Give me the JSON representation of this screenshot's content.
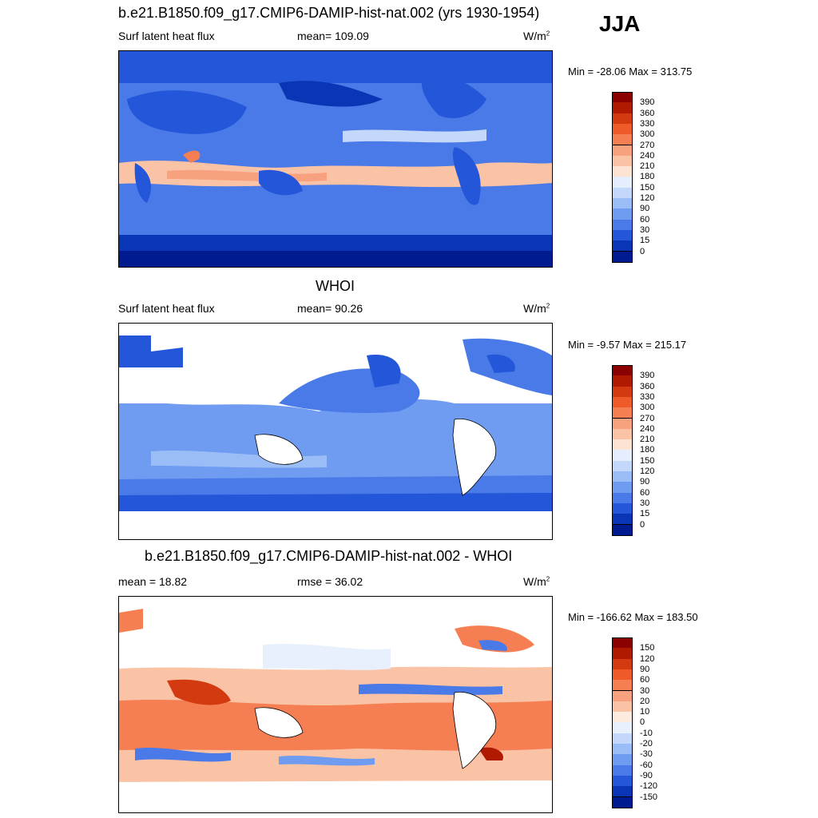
{
  "season": "JJA",
  "panels": [
    {
      "title": "b.e21.B1850.f09_g17.CMIP6-DAMIP-hist-nat.002 (yrs 1930-1954)",
      "variable": "Surf latent heat flux",
      "stat": "mean= 109.09",
      "units": "W/m",
      "units_sup": "2",
      "minmax": "Min = -28.06 Max = 313.75",
      "colorbar": {
        "labels": [
          "390",
          "360",
          "330",
          "300",
          "270",
          "240",
          "210",
          "180",
          "150",
          "120",
          "90",
          "60",
          "30",
          "15",
          "0"
        ],
        "colors": [
          "#8b0000",
          "#b01a00",
          "#d43a10",
          "#ee5a28",
          "#f57f52",
          "#f8a17e",
          "#fbc3a5",
          "#fde3d2",
          "#e4eefd",
          "#c4d8fb",
          "#9bbdf7",
          "#6f9bf0",
          "#4a79e8",
          "#2356d8",
          "#0a35b5",
          "#001a90"
        ]
      }
    },
    {
      "title": "WHOI",
      "variable": "Surf latent heat flux",
      "stat": "mean=  90.26",
      "units": "W/m",
      "units_sup": "2",
      "minmax": "Min =  -9.57 Max = 215.17",
      "colorbar": {
        "labels": [
          "390",
          "360",
          "330",
          "300",
          "270",
          "240",
          "210",
          "180",
          "150",
          "120",
          "90",
          "60",
          "30",
          "15",
          "0"
        ],
        "colors": [
          "#8b0000",
          "#b01a00",
          "#d43a10",
          "#ee5a28",
          "#f57f52",
          "#f8a17e",
          "#fbc3a5",
          "#fde3d2",
          "#e4eefd",
          "#c4d8fb",
          "#9bbdf7",
          "#6f9bf0",
          "#4a79e8",
          "#2356d8",
          "#0a35b5",
          "#001a90"
        ]
      }
    },
    {
      "title": "b.e21.B1850.f09_g17.CMIP6-DAMIP-hist-nat.002 - WHOI",
      "stat_left": "mean =  18.82",
      "stat": "rmse =  36.02",
      "units": "W/m",
      "units_sup": "2",
      "minmax": "Min = -166.62 Max = 183.50",
      "colorbar": {
        "labels": [
          "150",
          "120",
          "90",
          "60",
          "30",
          "20",
          "10",
          "0",
          "-10",
          "-20",
          "-30",
          "-60",
          "-90",
          "-120",
          "-150"
        ],
        "colors": [
          "#8b0000",
          "#b01a00",
          "#d43a10",
          "#ee5a28",
          "#f57f52",
          "#f8a17e",
          "#fbc3a5",
          "#fdebe0",
          "#e8f0fd",
          "#c4d8fb",
          "#9bbdf7",
          "#6f9bf0",
          "#4a79e8",
          "#2356d8",
          "#0a35b5",
          "#001a90"
        ]
      }
    }
  ]
}
